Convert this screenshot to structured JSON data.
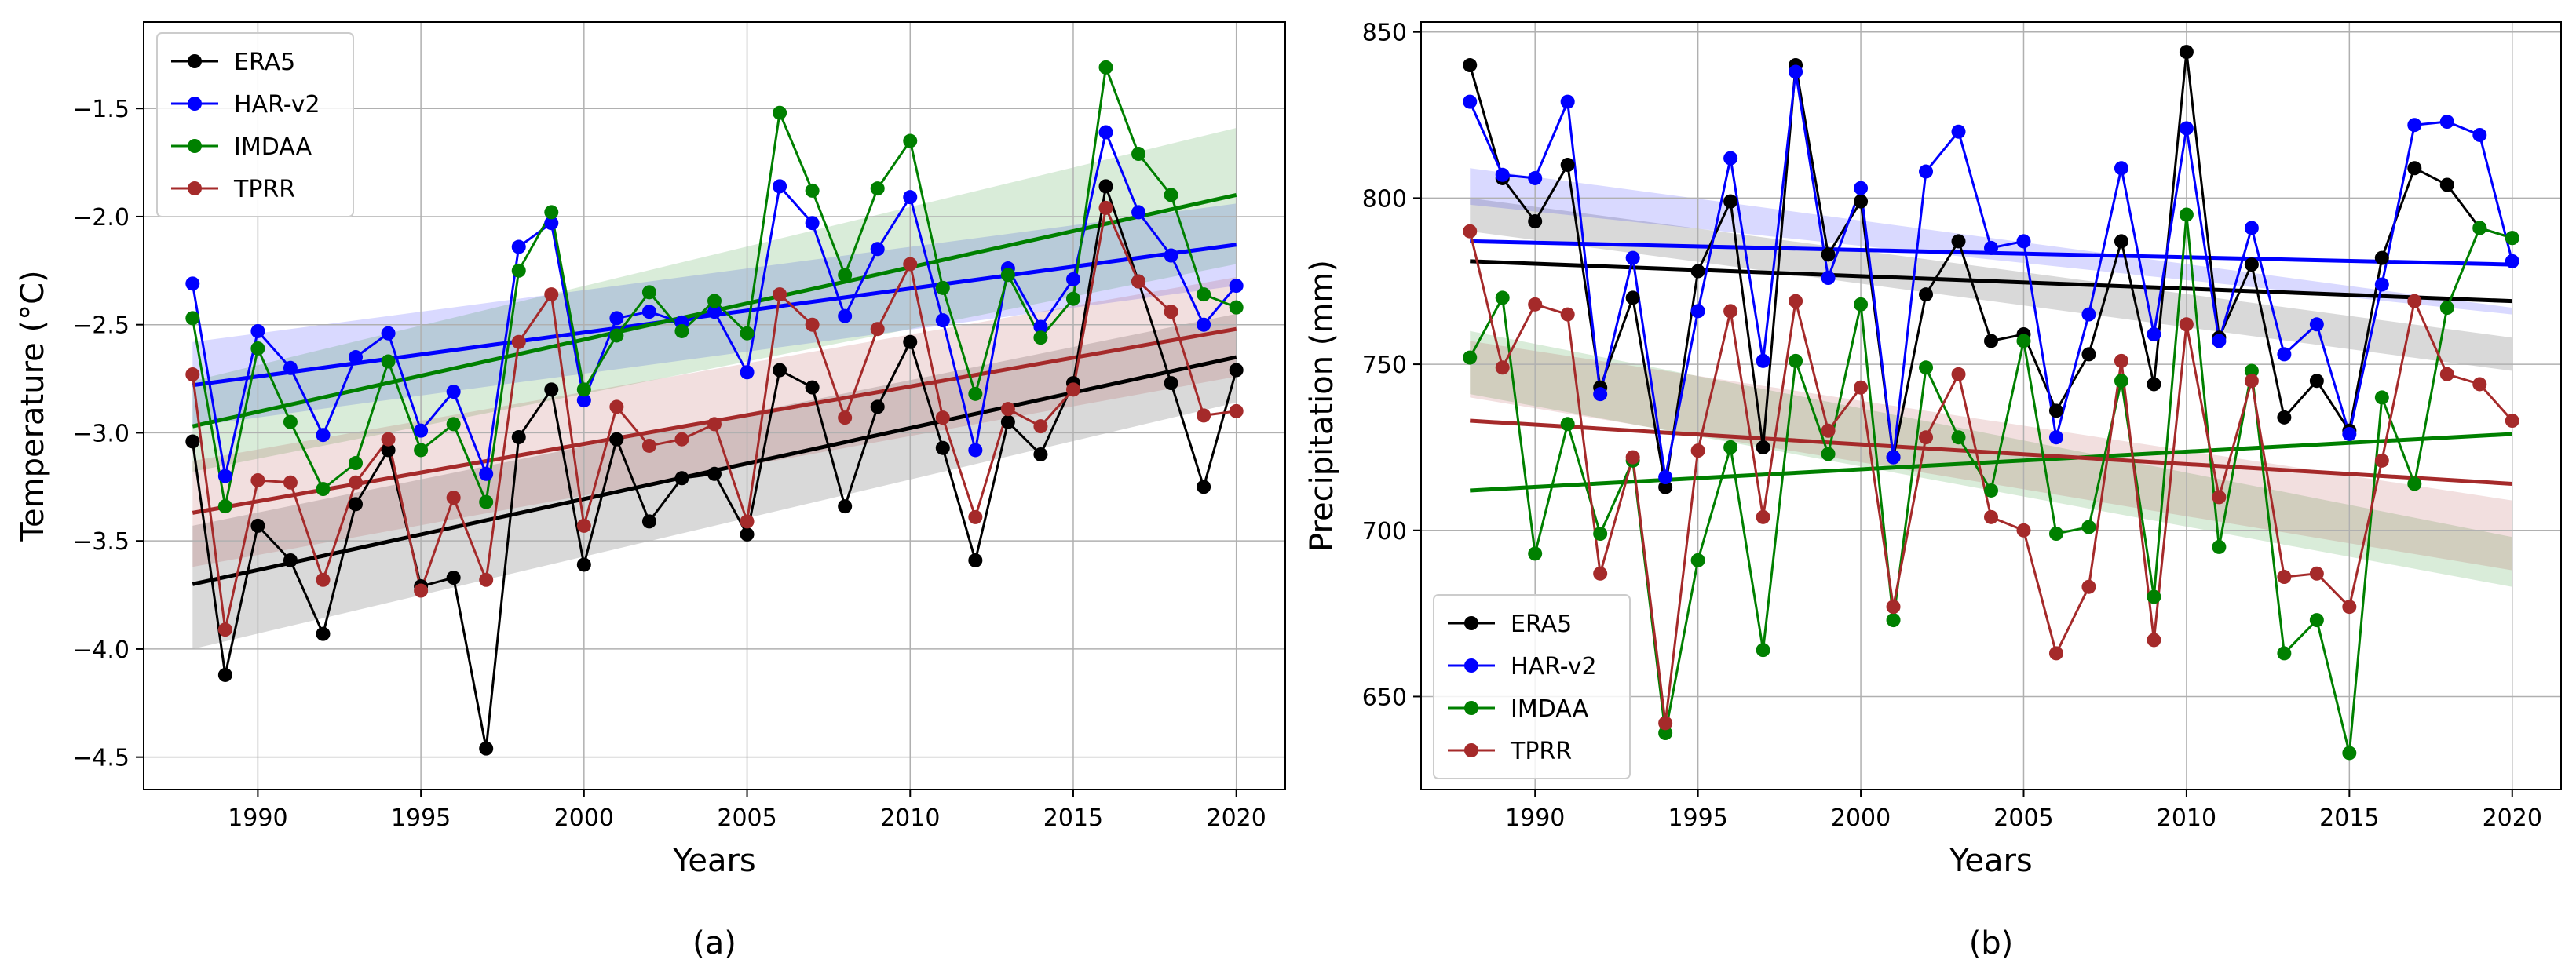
{
  "figure": {
    "panels": [
      "(a)",
      "(b)"
    ]
  },
  "colors": {
    "ERA5": "#000000",
    "HAR-v2": "#0000ff",
    "IMDAA": "#008000",
    "TPRR": "#a52a2a"
  },
  "chart_data": [
    {
      "type": "line",
      "panel_label": "(a)",
      "title": "",
      "xlabel": "Years",
      "ylabel": "Temperature (°C)",
      "xlim": [
        1986.5,
        2021.5
      ],
      "ylim": [
        -4.65,
        -1.1
      ],
      "xticks": [
        1990,
        1995,
        2000,
        2005,
        2010,
        2015,
        2020
      ],
      "xtick_labels": [
        "1990",
        "1995",
        "2000",
        "2005",
        "2010",
        "2015",
        "2020"
      ],
      "yticks": [
        -4.5,
        -4.0,
        -3.5,
        -3.0,
        -2.5,
        -2.0,
        -1.5
      ],
      "ytick_labels": [
        "−4.5",
        "−4.0",
        "−3.5",
        "−3.0",
        "−2.5",
        "−2.0",
        "−1.5"
      ],
      "grid": true,
      "legend": "top-left",
      "x": [
        1988,
        1989,
        1990,
        1991,
        1992,
        1993,
        1994,
        1995,
        1996,
        1997,
        1998,
        1999,
        2000,
        2001,
        2002,
        2003,
        2004,
        2005,
        2006,
        2007,
        2008,
        2009,
        2010,
        2011,
        2012,
        2013,
        2014,
        2015,
        2016,
        2017,
        2018,
        2019,
        2020
      ],
      "series": [
        {
          "name": "ERA5",
          "values": [
            -3.04,
            -4.12,
            -3.43,
            -3.59,
            -3.93,
            -3.33,
            -3.08,
            -3.71,
            -3.67,
            -4.46,
            -3.02,
            -2.8,
            -3.61,
            -3.03,
            -3.41,
            -3.21,
            -3.19,
            -3.47,
            -2.71,
            -2.79,
            -3.34,
            -2.88,
            -2.58,
            -3.07,
            -3.59,
            -2.95,
            -3.1,
            -2.77,
            -1.86,
            -2.3,
            -2.77,
            -3.25,
            -2.71
          ],
          "trend": [
            -3.7,
            -2.65
          ],
          "band_start": [
            -4.0,
            -3.43
          ],
          "band_end": [
            -2.86,
            -2.45
          ]
        },
        {
          "name": "HAR-v2",
          "values": [
            -2.31,
            -3.2,
            -2.53,
            -2.7,
            -3.01,
            -2.65,
            -2.54,
            -2.99,
            -2.81,
            -3.19,
            -2.14,
            -2.03,
            -2.85,
            -2.47,
            -2.44,
            -2.49,
            -2.44,
            -2.72,
            -1.86,
            -2.03,
            -2.46,
            -2.15,
            -1.91,
            -2.48,
            -3.08,
            -2.24,
            -2.51,
            -2.29,
            -1.61,
            -1.98,
            -2.18,
            -2.5,
            -2.32
          ],
          "trend": [
            -2.78,
            -2.13
          ],
          "band_start": [
            -2.97,
            -2.58
          ],
          "band_end": [
            -2.32,
            -1.94
          ]
        },
        {
          "name": "IMDAA",
          "values": [
            -2.47,
            -3.34,
            -2.61,
            -2.95,
            -3.26,
            -3.14,
            -2.67,
            -3.08,
            -2.96,
            -3.32,
            -2.25,
            -1.98,
            -2.8,
            -2.55,
            -2.35,
            -2.53,
            -2.39,
            -2.54,
            -1.52,
            -1.88,
            -2.27,
            -1.87,
            -1.65,
            -2.33,
            -2.82,
            -2.27,
            -2.56,
            -2.38,
            -1.31,
            -1.71,
            -1.9,
            -2.36,
            -2.42
          ],
          "trend": [
            -2.97,
            -1.9
          ],
          "band_start": [
            -3.18,
            -2.76
          ],
          "band_end": [
            -2.22,
            -1.59
          ]
        },
        {
          "name": "TPRR",
          "values": [
            -2.73,
            -3.91,
            -3.22,
            -3.23,
            -3.68,
            -3.23,
            -3.03,
            -3.73,
            -3.3,
            -3.68,
            -2.58,
            -2.36,
            -3.43,
            -2.88,
            -3.06,
            -3.03,
            -2.96,
            -3.41,
            -2.36,
            -2.5,
            -2.93,
            -2.52,
            -2.22,
            -2.93,
            -3.39,
            -2.89,
            -2.97,
            -2.8,
            -1.96,
            -2.3,
            -2.44,
            -2.92,
            -2.9
          ],
          "trend": [
            -3.37,
            -2.52
          ],
          "band_start": [
            -3.62,
            -3.13
          ],
          "band_end": [
            -2.74,
            -2.28
          ]
        }
      ]
    },
    {
      "type": "line",
      "panel_label": "(b)",
      "title": "",
      "xlabel": "Years",
      "ylabel": "Precipitation (mm)",
      "xlim": [
        1986.5,
        2021.5
      ],
      "ylim": [
        622,
        853
      ],
      "xticks": [
        1990,
        1995,
        2000,
        2005,
        2010,
        2015,
        2020
      ],
      "xtick_labels": [
        "1990",
        "1995",
        "2000",
        "2005",
        "2010",
        "2015",
        "2020"
      ],
      "yticks": [
        650,
        700,
        750,
        800,
        850
      ],
      "ytick_labels": [
        "650",
        "700",
        "750",
        "800",
        "850"
      ],
      "grid": true,
      "legend": "bottom-left",
      "x": [
        1988,
        1989,
        1990,
        1991,
        1992,
        1993,
        1994,
        1995,
        1996,
        1997,
        1998,
        1999,
        2000,
        2001,
        2002,
        2003,
        2004,
        2005,
        2006,
        2007,
        2008,
        2009,
        2010,
        2011,
        2012,
        2013,
        2014,
        2015,
        2016,
        2017,
        2018,
        2019,
        2020
      ],
      "series": [
        {
          "name": "ERA5",
          "values": [
            840,
            806,
            793,
            810,
            743,
            770,
            713,
            778,
            799,
            725,
            840,
            783,
            799,
            722,
            771,
            787,
            757,
            759,
            736,
            753,
            787,
            744,
            844,
            758,
            780,
            734,
            745,
            730,
            782,
            809,
            804,
            791,
            788
          ],
          "trend": [
            781,
            769
          ],
          "band_start": [
            800,
            790
          ],
          "band_end": [
            758,
            748
          ]
        },
        {
          "name": "HAR-v2",
          "values": [
            829,
            807,
            806,
            829,
            741,
            782,
            716,
            766,
            812,
            751,
            838,
            776,
            803,
            722,
            808,
            820,
            785,
            787,
            728,
            765,
            809,
            759,
            821,
            757,
            791,
            753,
            762,
            729,
            774,
            822,
            823,
            819,
            781
          ],
          "trend": [
            787,
            780
          ],
          "band_start": [
            809,
            798
          ],
          "band_end": [
            767,
            765
          ]
        },
        {
          "name": "IMDAA",
          "values": [
            752,
            770,
            693,
            732,
            699,
            721,
            639,
            691,
            725,
            664,
            751,
            723,
            768,
            673,
            749,
            728,
            712,
            757,
            699,
            701,
            745,
            680,
            795,
            695,
            748,
            663,
            673,
            633,
            740,
            714,
            767,
            791,
            788
          ],
          "trend": [
            712,
            729
          ],
          "band_start": [
            741,
            760
          ],
          "band_end": [
            683,
            698
          ]
        },
        {
          "name": "TPRR",
          "values": [
            790,
            749,
            768,
            765,
            687,
            722,
            642,
            724,
            766,
            704,
            769,
            730,
            743,
            677,
            728,
            747,
            704,
            700,
            663,
            683,
            751,
            667,
            762,
            710,
            745,
            686,
            687,
            677,
            721,
            769,
            747,
            744,
            733
          ],
          "trend": [
            733,
            714
          ],
          "band_start": [
            757,
            740
          ],
          "band_end": [
            709,
            688
          ]
        }
      ]
    }
  ]
}
